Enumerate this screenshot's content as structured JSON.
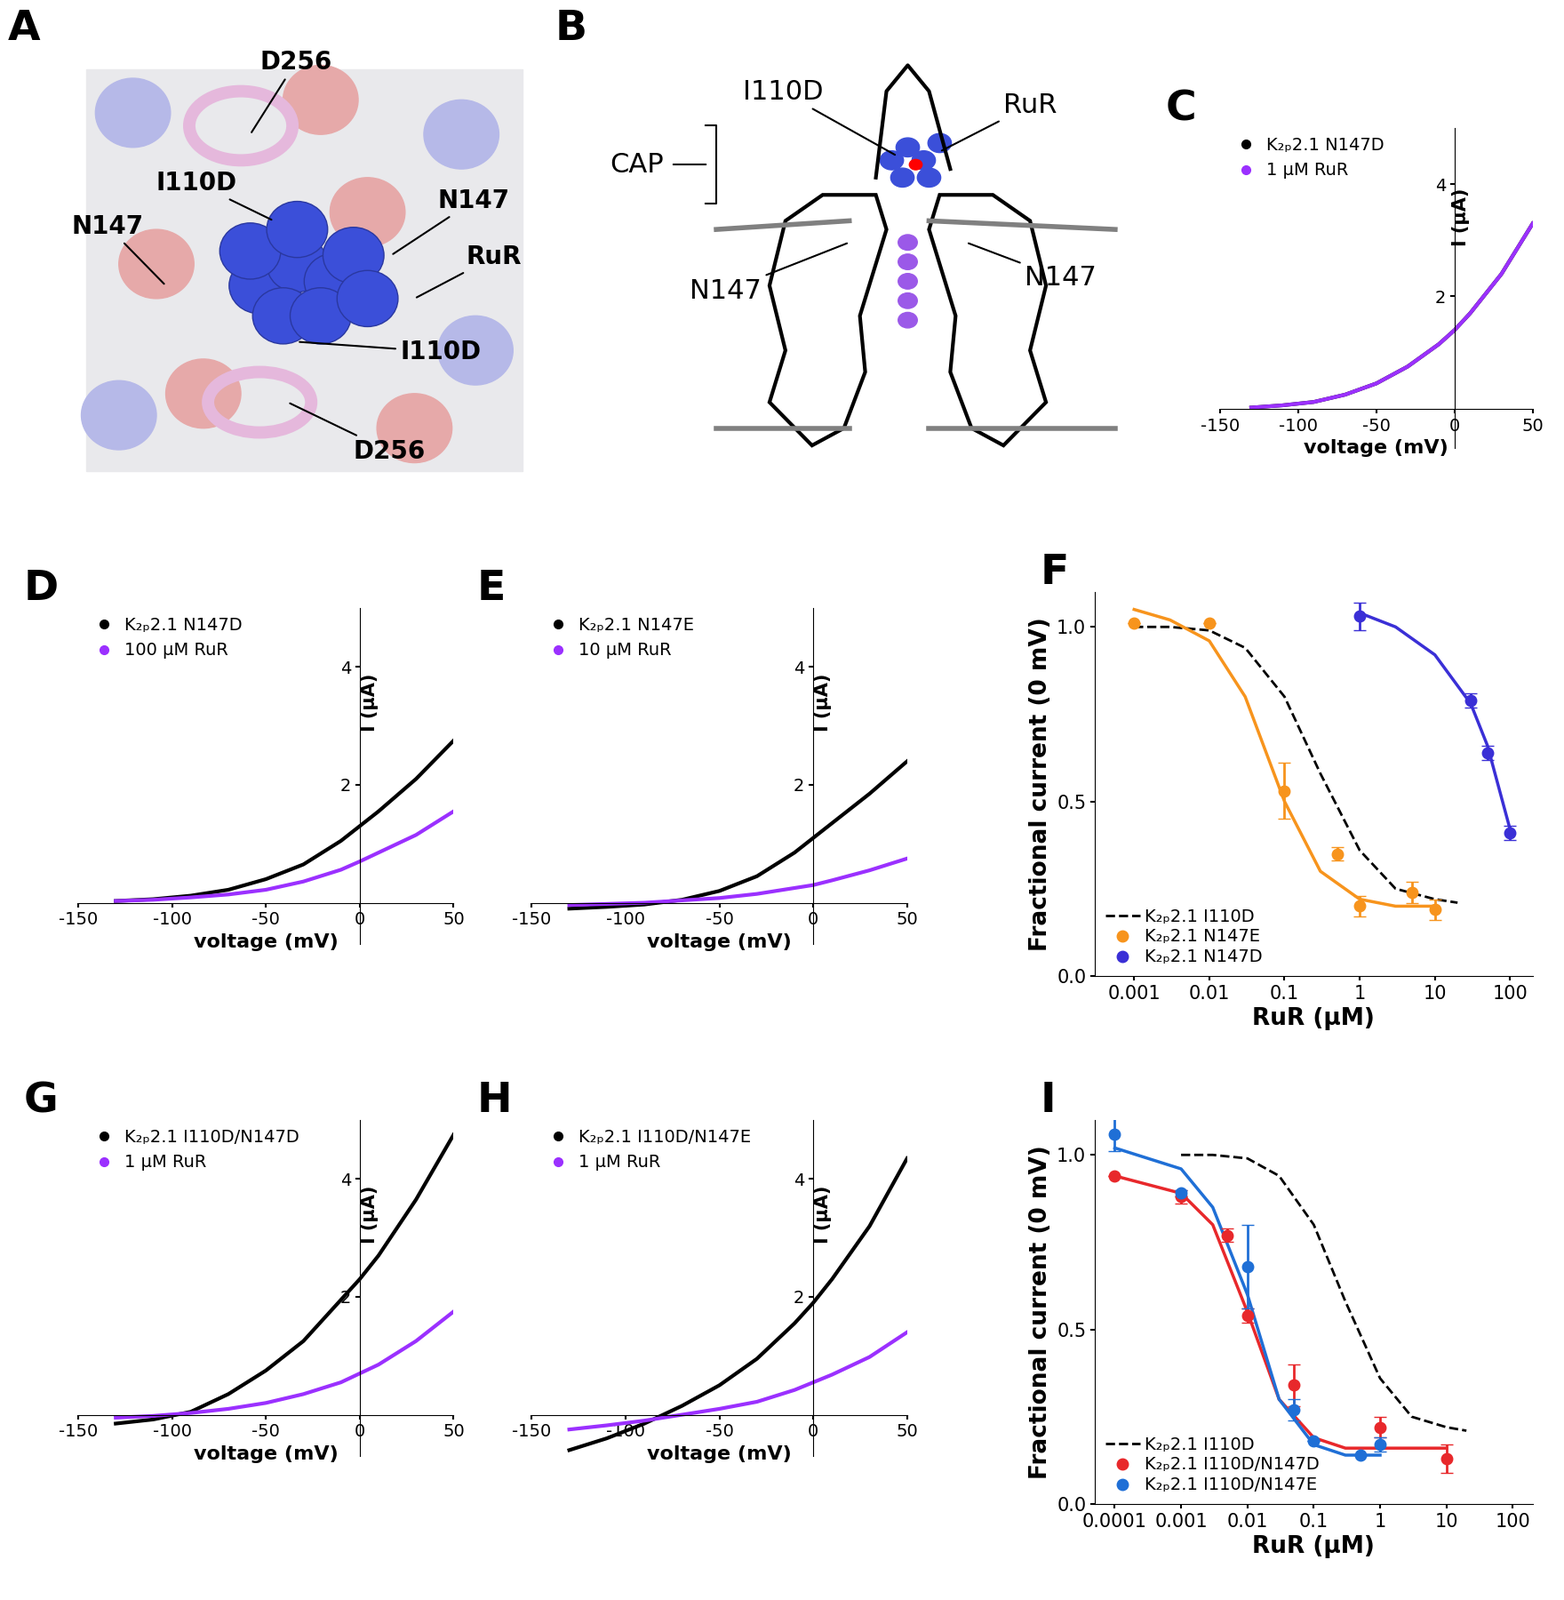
{
  "chart_data": [
    {
      "panel": "A",
      "type": "diagram",
      "annotations": [
        "D256",
        "I110D",
        "N147",
        "N147",
        "RuR",
        "I110D",
        "D256"
      ]
    },
    {
      "panel": "B",
      "type": "diagram",
      "annotations": [
        "CAP",
        "I110D",
        "RuR",
        "N147",
        "N147"
      ]
    },
    {
      "panel": "C",
      "type": "line",
      "xlabel": "voltage (mV)",
      "ylabel": "I (µA)",
      "xlim": [
        -150,
        50
      ],
      "ylim": [
        -0.7,
        5
      ],
      "xticks": [
        -150,
        -100,
        -50,
        0,
        50
      ],
      "yticks": [
        2,
        4
      ],
      "legend": "upper left",
      "x": [
        -130,
        -110,
        -90,
        -70,
        -50,
        -30,
        -10,
        0,
        10,
        30,
        50
      ],
      "series": [
        {
          "name": "K₂ₚ2.1 N147D",
          "color": "#000000",
          "values": [
            0.02,
            0.06,
            0.12,
            0.25,
            0.45,
            0.75,
            1.15,
            1.4,
            1.7,
            2.4,
            3.3
          ]
        },
        {
          "name": "1 µM RuR",
          "color": "#9b30ff",
          "values": [
            0.02,
            0.06,
            0.12,
            0.25,
            0.45,
            0.75,
            1.15,
            1.4,
            1.7,
            2.4,
            3.3
          ]
        }
      ]
    },
    {
      "panel": "D",
      "type": "line",
      "xlabel": "voltage (mV)",
      "ylabel": "I (µA)",
      "xlim": [
        -150,
        50
      ],
      "ylim": [
        -0.7,
        5
      ],
      "xticks": [
        -150,
        -100,
        -50,
        0,
        50
      ],
      "yticks": [
        2,
        4
      ],
      "legend": "upper left",
      "x": [
        -130,
        -110,
        -90,
        -70,
        -50,
        -30,
        -10,
        0,
        10,
        30,
        50
      ],
      "series": [
        {
          "name": "K₂ₚ2.1 N147D",
          "color": "#000000",
          "values": [
            0.03,
            0.06,
            0.12,
            0.22,
            0.4,
            0.65,
            1.05,
            1.3,
            1.55,
            2.1,
            2.75
          ]
        },
        {
          "name": "100 µM RuR",
          "color": "#9b30ff",
          "values": [
            0.03,
            0.05,
            0.09,
            0.14,
            0.22,
            0.36,
            0.56,
            0.7,
            0.85,
            1.15,
            1.55
          ]
        }
      ]
    },
    {
      "panel": "E",
      "type": "line",
      "xlabel": "voltage (mV)",
      "ylabel": "I (µA)",
      "xlim": [
        -150,
        50
      ],
      "ylim": [
        -0.7,
        5
      ],
      "xticks": [
        -150,
        -100,
        -50,
        0,
        50
      ],
      "yticks": [
        2,
        4
      ],
      "legend": "upper left",
      "x": [
        -130,
        -110,
        -90,
        -70,
        -50,
        -30,
        -10,
        0,
        10,
        30,
        50
      ],
      "series": [
        {
          "name": "K₂ₚ2.1 N147E",
          "color": "#000000",
          "values": [
            -0.1,
            -0.07,
            -0.03,
            0.05,
            0.2,
            0.45,
            0.85,
            1.1,
            1.35,
            1.85,
            2.4
          ]
        },
        {
          "name": "10 µM RuR",
          "color": "#9b30ff",
          "values": [
            -0.04,
            -0.02,
            0.0,
            0.04,
            0.08,
            0.15,
            0.25,
            0.3,
            0.38,
            0.55,
            0.75
          ]
        }
      ]
    },
    {
      "panel": "F",
      "type": "dose_response",
      "xlabel": "RuR (µM)",
      "ylabel": "Fractional current (0 mV)",
      "log": "x",
      "xlim": [
        0.0003,
        200
      ],
      "ylim": [
        0,
        1.1
      ],
      "xticks": [
        0.001,
        0.01,
        0.1,
        1,
        10,
        100
      ],
      "yticks": [
        {
          "value": 0,
          "label": "0.0"
        },
        {
          "value": 0.5,
          "label": "0.5"
        },
        {
          "value": 1,
          "label": "1.0"
        }
      ],
      "legend": "lower left",
      "series": [
        {
          "name": "K₂ₚ2.1 I110D",
          "color": "#000000",
          "line_style": "dashed",
          "x": [
            0.001,
            0.003,
            0.01,
            0.03,
            0.1,
            0.3,
            1,
            3,
            10,
            20
          ],
          "values": [
            1.0,
            1.0,
            0.99,
            0.94,
            0.8,
            0.58,
            0.36,
            0.25,
            0.22,
            0.21
          ]
        },
        {
          "name": "K₂ₚ2.1 N147E",
          "color": "#f7941d",
          "marker": "circle",
          "x": [
            0.001,
            0.01,
            0.1,
            0.5,
            1,
            5,
            10
          ],
          "values": [
            1.01,
            1.01,
            0.53,
            0.35,
            0.2,
            0.24,
            0.19
          ],
          "errors": [
            0,
            0,
            0.08,
            0.02,
            0.03,
            0.03,
            0.03
          ],
          "fit_x": [
            0.001,
            0.003,
            0.01,
            0.03,
            0.1,
            0.3,
            1,
            3,
            10
          ],
          "fit_values": [
            1.05,
            1.02,
            0.96,
            0.8,
            0.5,
            0.3,
            0.22,
            0.2,
            0.2
          ]
        },
        {
          "name": "K₂ₚ2.1 N147D",
          "color": "#3a2fd6",
          "marker": "circle",
          "x": [
            1,
            30,
            50,
            100
          ],
          "values": [
            1.03,
            0.79,
            0.64,
            0.41
          ],
          "errors": [
            0.04,
            0.02,
            0.02,
            0.02
          ],
          "fit_x": [
            1,
            3,
            10,
            30,
            50,
            100
          ],
          "fit_values": [
            1.04,
            1.0,
            0.92,
            0.78,
            0.66,
            0.42
          ]
        }
      ]
    },
    {
      "panel": "G",
      "type": "line",
      "xlabel": "voltage (mV)",
      "ylabel": "I (µA)",
      "xlim": [
        -150,
        50
      ],
      "ylim": [
        -0.7,
        5
      ],
      "xticks": [
        -150,
        -100,
        -50,
        0,
        50
      ],
      "yticks": [
        2,
        4
      ],
      "legend": "upper left",
      "x": [
        -130,
        -110,
        -90,
        -70,
        -50,
        -30,
        -10,
        0,
        10,
        30,
        50
      ],
      "series": [
        {
          "name": "K₂ₚ2.1 I110D/N147D",
          "color": "#000000",
          "values": [
            -0.15,
            -0.08,
            0.05,
            0.35,
            0.75,
            1.25,
            1.95,
            2.3,
            2.7,
            3.65,
            4.75
          ]
        },
        {
          "name": "1 µM RuR",
          "color": "#9b30ff",
          "values": [
            -0.05,
            -0.02,
            0.03,
            0.1,
            0.2,
            0.35,
            0.55,
            0.7,
            0.85,
            1.25,
            1.75
          ]
        }
      ]
    },
    {
      "panel": "H",
      "type": "line",
      "xlabel": "voltage (mV)",
      "ylabel": "I (µA)",
      "xlim": [
        -150,
        50
      ],
      "ylim": [
        -0.7,
        5
      ],
      "xticks": [
        -150,
        -100,
        -50,
        0,
        50
      ],
      "yticks": [
        2,
        4
      ],
      "legend": "upper left",
      "x": [
        -130,
        -110,
        -90,
        -70,
        -50,
        -30,
        -10,
        0,
        10,
        30,
        50
      ],
      "series": [
        {
          "name": "K₂ₚ2.1 I110D/N147E",
          "color": "#000000",
          "values": [
            -0.6,
            -0.4,
            -0.15,
            0.15,
            0.5,
            0.95,
            1.55,
            1.9,
            2.3,
            3.2,
            4.35
          ]
        },
        {
          "name": "1 µM RuR",
          "color": "#9b30ff",
          "values": [
            -0.25,
            -0.18,
            -0.1,
            0.0,
            0.1,
            0.22,
            0.42,
            0.55,
            0.68,
            0.98,
            1.4
          ]
        }
      ]
    },
    {
      "panel": "I",
      "type": "dose_response",
      "xlabel": "RuR (µM)",
      "ylabel": "Fractional current (0 mV)",
      "log": "x",
      "xlim": [
        5e-05,
        200
      ],
      "ylim": [
        0,
        1.1
      ],
      "xticks": [
        0.0001,
        0.001,
        0.01,
        0.1,
        1,
        10,
        100
      ],
      "yticks": [
        {
          "value": 0,
          "label": "0.0"
        },
        {
          "value": 0.5,
          "label": "0.5"
        },
        {
          "value": 1,
          "label": "1.0"
        }
      ],
      "legend": "lower left",
      "series": [
        {
          "name": "K₂ₚ2.1 I110D",
          "color": "#000000",
          "line_style": "dashed",
          "x": [
            0.001,
            0.003,
            0.01,
            0.03,
            0.1,
            0.3,
            1,
            3,
            10,
            20
          ],
          "values": [
            1.0,
            1.0,
            0.99,
            0.94,
            0.8,
            0.58,
            0.36,
            0.25,
            0.22,
            0.21
          ]
        },
        {
          "name": "K₂ₚ2.1 I110D/N147D",
          "color": "#e8282b",
          "marker": "circle",
          "x": [
            0.0001,
            0.001,
            0.005,
            0.01,
            0.05,
            1,
            10
          ],
          "values": [
            0.94,
            0.88,
            0.77,
            0.54,
            0.34,
            0.22,
            0.13
          ],
          "errors": [
            0,
            0.02,
            0.02,
            0.02,
            0.06,
            0.03,
            0.04
          ],
          "fit_x": [
            0.0001,
            0.001,
            0.003,
            0.01,
            0.03,
            0.1,
            0.3,
            1,
            10
          ],
          "fit_values": [
            0.94,
            0.89,
            0.8,
            0.55,
            0.3,
            0.19,
            0.16,
            0.16,
            0.16
          ]
        },
        {
          "name": "K₂ₚ2.1 I110D/N147E",
          "color": "#1f6fd6",
          "marker": "circle",
          "x": [
            0.0001,
            0.001,
            0.01,
            0.05,
            0.1,
            0.5,
            1
          ],
          "values": [
            1.06,
            0.89,
            0.68,
            0.27,
            0.18,
            0.14,
            0.17
          ],
          "errors": [
            0.05,
            0.01,
            0.12,
            0.03,
            0,
            0,
            0.02
          ],
          "fit_x": [
            0.0001,
            0.001,
            0.003,
            0.01,
            0.03,
            0.1,
            0.3,
            1
          ],
          "fit_values": [
            1.02,
            0.96,
            0.85,
            0.6,
            0.3,
            0.17,
            0.14,
            0.14
          ]
        }
      ]
    }
  ]
}
